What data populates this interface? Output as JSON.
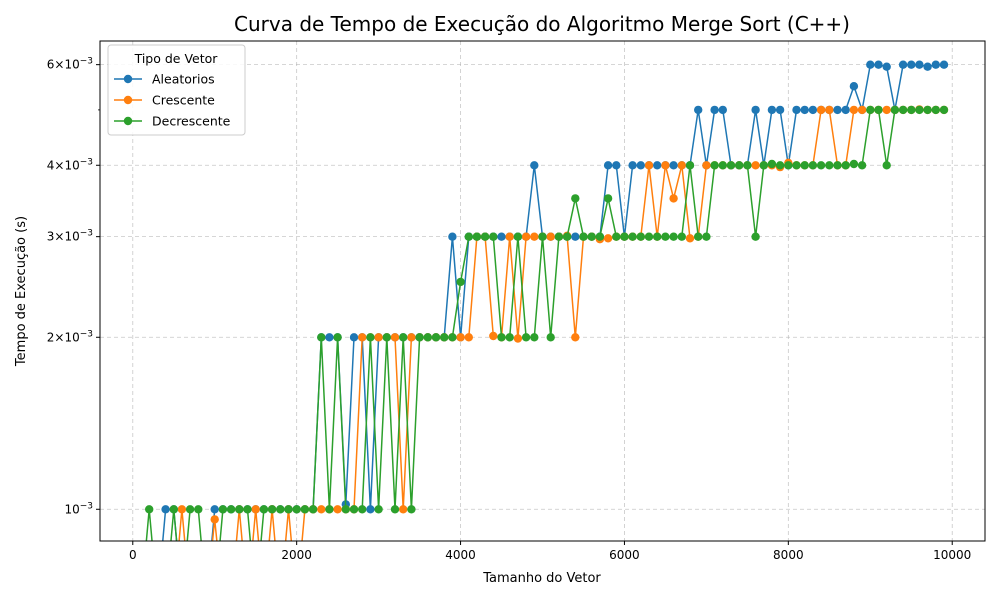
{
  "chart_data": {
    "type": "line",
    "title": "Curva de Tempo de Execução do Algoritmo Merge Sort (C++)",
    "xlabel": "Tamanho do Vetor",
    "ylabel": "Tempo de Execução (s)",
    "xlim": [
      -400,
      10400
    ],
    "ylim": [
      0.00088,
      0.0066
    ],
    "yscale": "log",
    "grid": true,
    "legend": {
      "title": "Tipo de Vetor",
      "placement": "top-left"
    },
    "x_ticks": [
      {
        "value": 0,
        "label": "0"
      },
      {
        "value": 2000,
        "label": "2000"
      },
      {
        "value": 4000,
        "label": "4000"
      },
      {
        "value": 6000,
        "label": "6000"
      },
      {
        "value": 8000,
        "label": "8000"
      },
      {
        "value": 10000,
        "label": "10000"
      }
    ],
    "y_ticks": [
      {
        "value": 0.001,
        "mant": "10",
        "exp": "−3",
        "type": "major"
      },
      {
        "value": 0.002,
        "mant": "2×10",
        "exp": "−3",
        "type": "major"
      },
      {
        "value": 0.003,
        "mant": "3×10",
        "exp": "−3",
        "type": "major"
      },
      {
        "value": 0.004,
        "mant": "4×10",
        "exp": "−3",
        "type": "major"
      },
      {
        "value": 0.005,
        "mant": "",
        "exp": "",
        "type": "minor"
      },
      {
        "value": 0.006,
        "mant": "6×10",
        "exp": "−3",
        "type": "major"
      }
    ],
    "series": [
      {
        "name": "Aleatorios",
        "color": "#1f77b4",
        "points": [
          [
            0,
            0
          ],
          [
            100,
            0
          ],
          [
            200,
            0
          ],
          [
            300,
            0
          ],
          [
            400,
            0.001
          ],
          [
            500,
            0.001
          ],
          [
            600,
            0
          ],
          [
            700,
            0
          ],
          [
            800,
            0
          ],
          [
            900,
            0
          ],
          [
            1000,
            0.001
          ],
          [
            1100,
            0.001
          ],
          [
            1200,
            0.001
          ],
          [
            1300,
            0.001
          ],
          [
            1400,
            0.001
          ],
          [
            1500,
            0.001
          ],
          [
            1600,
            0.001
          ],
          [
            1700,
            0.001
          ],
          [
            1800,
            0.001
          ],
          [
            1900,
            0.001
          ],
          [
            2000,
            0.001
          ],
          [
            2100,
            0.001
          ],
          [
            2200,
            0.001
          ],
          [
            2300,
            0.002
          ],
          [
            2400,
            0.002
          ],
          [
            2500,
            0.002
          ],
          [
            2600,
            0.00102
          ],
          [
            2700,
            0.002
          ],
          [
            2800,
            0.002
          ],
          [
            2900,
            0.001
          ],
          [
            3000,
            0.002
          ],
          [
            3100,
            0.002
          ],
          [
            3200,
            0.002
          ],
          [
            3300,
            0.002
          ],
          [
            3400,
            0.002
          ],
          [
            3500,
            0.002
          ],
          [
            3600,
            0.002
          ],
          [
            3700,
            0.002
          ],
          [
            3800,
            0.002
          ],
          [
            3900,
            0.003
          ],
          [
            4000,
            0.002
          ],
          [
            4100,
            0.003
          ],
          [
            4200,
            0.003
          ],
          [
            4300,
            0.003
          ],
          [
            4400,
            0.003
          ],
          [
            4500,
            0.003
          ],
          [
            4600,
            0.003
          ],
          [
            4700,
            0.003
          ],
          [
            4800,
            0.003
          ],
          [
            4900,
            0.004
          ],
          [
            5000,
            0.003
          ],
          [
            5100,
            0.003
          ],
          [
            5200,
            0.003
          ],
          [
            5300,
            0.003
          ],
          [
            5400,
            0.003
          ],
          [
            5500,
            0.003
          ],
          [
            5600,
            0.003
          ],
          [
            5700,
            0.003
          ],
          [
            5800,
            0.004
          ],
          [
            5900,
            0.004
          ],
          [
            6000,
            0.003
          ],
          [
            6100,
            0.004
          ],
          [
            6200,
            0.004
          ],
          [
            6300,
            0.004
          ],
          [
            6400,
            0.004
          ],
          [
            6500,
            0.004
          ],
          [
            6600,
            0.004
          ],
          [
            6700,
            0.004
          ],
          [
            6800,
            0.004
          ],
          [
            6900,
            0.005
          ],
          [
            7000,
            0.004
          ],
          [
            7100,
            0.005
          ],
          [
            7200,
            0.005
          ],
          [
            7300,
            0.004
          ],
          [
            7400,
            0.004
          ],
          [
            7500,
            0.004
          ],
          [
            7600,
            0.005
          ],
          [
            7700,
            0.004
          ],
          [
            7800,
            0.005
          ],
          [
            7900,
            0.005
          ],
          [
            8000,
            0.004
          ],
          [
            8100,
            0.005
          ],
          [
            8200,
            0.005
          ],
          [
            8300,
            0.005
          ],
          [
            8400,
            0.005
          ],
          [
            8500,
            0.005
          ],
          [
            8600,
            0.005
          ],
          [
            8700,
            0.005
          ],
          [
            8800,
            0.0055
          ],
          [
            8900,
            0.005
          ],
          [
            9000,
            0.006
          ],
          [
            9100,
            0.006
          ],
          [
            9200,
            0.00595
          ],
          [
            9300,
            0.005
          ],
          [
            9400,
            0.006
          ],
          [
            9500,
            0.006
          ],
          [
            9600,
            0.006
          ],
          [
            9700,
            0.00595
          ],
          [
            9800,
            0.006
          ],
          [
            9900,
            0.006
          ]
        ]
      },
      {
        "name": "Crescente",
        "color": "#ff7f0e",
        "points": [
          [
            0,
            0
          ],
          [
            100,
            0
          ],
          [
            200,
            0
          ],
          [
            300,
            0
          ],
          [
            400,
            0
          ],
          [
            500,
            0
          ],
          [
            600,
            0.001
          ],
          [
            700,
            0
          ],
          [
            800,
            0
          ],
          [
            900,
            0
          ],
          [
            1000,
            0.00096
          ],
          [
            1100,
            0
          ],
          [
            1200,
            0
          ],
          [
            1300,
            0.001
          ],
          [
            1400,
            0
          ],
          [
            1500,
            0.001
          ],
          [
            1600,
            0
          ],
          [
            1700,
            0.001
          ],
          [
            1800,
            0
          ],
          [
            1900,
            0.001
          ],
          [
            2000,
            0
          ],
          [
            2100,
            0.001
          ],
          [
            2200,
            0.001
          ],
          [
            2300,
            0.001
          ],
          [
            2400,
            0.001
          ],
          [
            2500,
            0.001
          ],
          [
            2600,
            0.001
          ],
          [
            2700,
            0.001
          ],
          [
            2800,
            0.002
          ],
          [
            2900,
            0.002
          ],
          [
            3000,
            0.002
          ],
          [
            3100,
            0.002
          ],
          [
            3200,
            0.002
          ],
          [
            3300,
            0.001
          ],
          [
            3400,
            0.002
          ],
          [
            3500,
            0.002
          ],
          [
            3600,
            0.002
          ],
          [
            3700,
            0.002
          ],
          [
            3800,
            0.002
          ],
          [
            3900,
            0.002
          ],
          [
            4000,
            0.002
          ],
          [
            4100,
            0.002
          ],
          [
            4200,
            0.003
          ],
          [
            4300,
            0.003
          ],
          [
            4400,
            0.00201
          ],
          [
            4500,
            0.002
          ],
          [
            4600,
            0.003
          ],
          [
            4700,
            0.00199
          ],
          [
            4800,
            0.003
          ],
          [
            4900,
            0.003
          ],
          [
            5000,
            0.003
          ],
          [
            5100,
            0.003
          ],
          [
            5200,
            0.003
          ],
          [
            5300,
            0.00301
          ],
          [
            5400,
            0.002
          ],
          [
            5500,
            0.003
          ],
          [
            5600,
            0.003
          ],
          [
            5700,
            0.00297
          ],
          [
            5800,
            0.00298
          ],
          [
            5900,
            0.003
          ],
          [
            6000,
            0.003
          ],
          [
            6100,
            0.003
          ],
          [
            6200,
            0.003
          ],
          [
            6300,
            0.004
          ],
          [
            6400,
            0.003
          ],
          [
            6500,
            0.004
          ],
          [
            6600,
            0.0035
          ],
          [
            6700,
            0.004
          ],
          [
            6800,
            0.00298
          ],
          [
            6900,
            0.003
          ],
          [
            7000,
            0.004
          ],
          [
            7100,
            0.004
          ],
          [
            7200,
            0.004
          ],
          [
            7300,
            0.004
          ],
          [
            7400,
            0.004
          ],
          [
            7500,
            0.004
          ],
          [
            7600,
            0.004
          ],
          [
            7700,
            0.004
          ],
          [
            7800,
            0.004
          ],
          [
            7900,
            0.00397
          ],
          [
            8000,
            0.00404
          ],
          [
            8100,
            0.004
          ],
          [
            8200,
            0.004
          ],
          [
            8300,
            0.004
          ],
          [
            8400,
            0.005
          ],
          [
            8500,
            0.005
          ],
          [
            8600,
            0.004
          ],
          [
            8700,
            0.004
          ],
          [
            8800,
            0.005
          ],
          [
            8900,
            0.005
          ],
          [
            9000,
            0.005
          ],
          [
            9100,
            0.005
          ],
          [
            9200,
            0.005
          ],
          [
            9300,
            0.005
          ],
          [
            9400,
            0.005
          ],
          [
            9500,
            0.005
          ],
          [
            9600,
            0.00501
          ],
          [
            9700,
            0.005
          ],
          [
            9800,
            0.005
          ],
          [
            9900,
            0.005
          ]
        ]
      },
      {
        "name": "Decrescente",
        "color": "#2ca02c",
        "points": [
          [
            0,
            0
          ],
          [
            100,
            0
          ],
          [
            200,
            0.001
          ],
          [
            300,
            0
          ],
          [
            400,
            0
          ],
          [
            500,
            0.001
          ],
          [
            600,
            0
          ],
          [
            700,
            0.001
          ],
          [
            800,
            0.001
          ],
          [
            900,
            0
          ],
          [
            1000,
            0
          ],
          [
            1100,
            0.001
          ],
          [
            1200,
            0.001
          ],
          [
            1300,
            0.001
          ],
          [
            1400,
            0.001
          ],
          [
            1500,
            0
          ],
          [
            1600,
            0.001
          ],
          [
            1700,
            0.001
          ],
          [
            1800,
            0.001
          ],
          [
            1900,
            0.001
          ],
          [
            2000,
            0.001
          ],
          [
            2100,
            0.001
          ],
          [
            2200,
            0.001
          ],
          [
            2300,
            0.002
          ],
          [
            2400,
            0.001
          ],
          [
            2500,
            0.002
          ],
          [
            2600,
            0.001
          ],
          [
            2700,
            0.001
          ],
          [
            2800,
            0.001
          ],
          [
            2900,
            0.002
          ],
          [
            3000,
            0.001
          ],
          [
            3100,
            0.002
          ],
          [
            3200,
            0.001
          ],
          [
            3300,
            0.002
          ],
          [
            3400,
            0.001
          ],
          [
            3500,
            0.002
          ],
          [
            3600,
            0.002
          ],
          [
            3700,
            0.002
          ],
          [
            3800,
            0.002
          ],
          [
            3900,
            0.002
          ],
          [
            4000,
            0.0025
          ],
          [
            4100,
            0.003
          ],
          [
            4200,
            0.003
          ],
          [
            4300,
            0.003
          ],
          [
            4400,
            0.003
          ],
          [
            4500,
            0.002
          ],
          [
            4600,
            0.002
          ],
          [
            4700,
            0.003
          ],
          [
            4800,
            0.002
          ],
          [
            4900,
            0.002
          ],
          [
            5000,
            0.003
          ],
          [
            5100,
            0.002
          ],
          [
            5200,
            0.003
          ],
          [
            5300,
            0.003
          ],
          [
            5400,
            0.0035
          ],
          [
            5500,
            0.003
          ],
          [
            5600,
            0.003
          ],
          [
            5700,
            0.003
          ],
          [
            5800,
            0.0035
          ],
          [
            5900,
            0.003
          ],
          [
            6000,
            0.003
          ],
          [
            6100,
            0.003
          ],
          [
            6200,
            0.003
          ],
          [
            6300,
            0.003
          ],
          [
            6400,
            0.003
          ],
          [
            6500,
            0.003
          ],
          [
            6600,
            0.003
          ],
          [
            6700,
            0.003
          ],
          [
            6800,
            0.004
          ],
          [
            6900,
            0.003
          ],
          [
            7000,
            0.003
          ],
          [
            7100,
            0.004
          ],
          [
            7200,
            0.004
          ],
          [
            7300,
            0.004
          ],
          [
            7400,
            0.004
          ],
          [
            7500,
            0.004
          ],
          [
            7600,
            0.003
          ],
          [
            7700,
            0.004
          ],
          [
            7800,
            0.00402
          ],
          [
            7900,
            0.004
          ],
          [
            8000,
            0.004
          ],
          [
            8100,
            0.004
          ],
          [
            8200,
            0.004
          ],
          [
            8300,
            0.004
          ],
          [
            8400,
            0.004
          ],
          [
            8500,
            0.004
          ],
          [
            8600,
            0.004
          ],
          [
            8700,
            0.004
          ],
          [
            8800,
            0.00402
          ],
          [
            8900,
            0.004
          ],
          [
            9000,
            0.005
          ],
          [
            9100,
            0.005
          ],
          [
            9200,
            0.004
          ],
          [
            9300,
            0.005
          ],
          [
            9400,
            0.005
          ],
          [
            9500,
            0.005
          ],
          [
            9600,
            0.005
          ],
          [
            9700,
            0.005
          ],
          [
            9800,
            0.005
          ],
          [
            9900,
            0.005
          ]
        ]
      }
    ]
  }
}
